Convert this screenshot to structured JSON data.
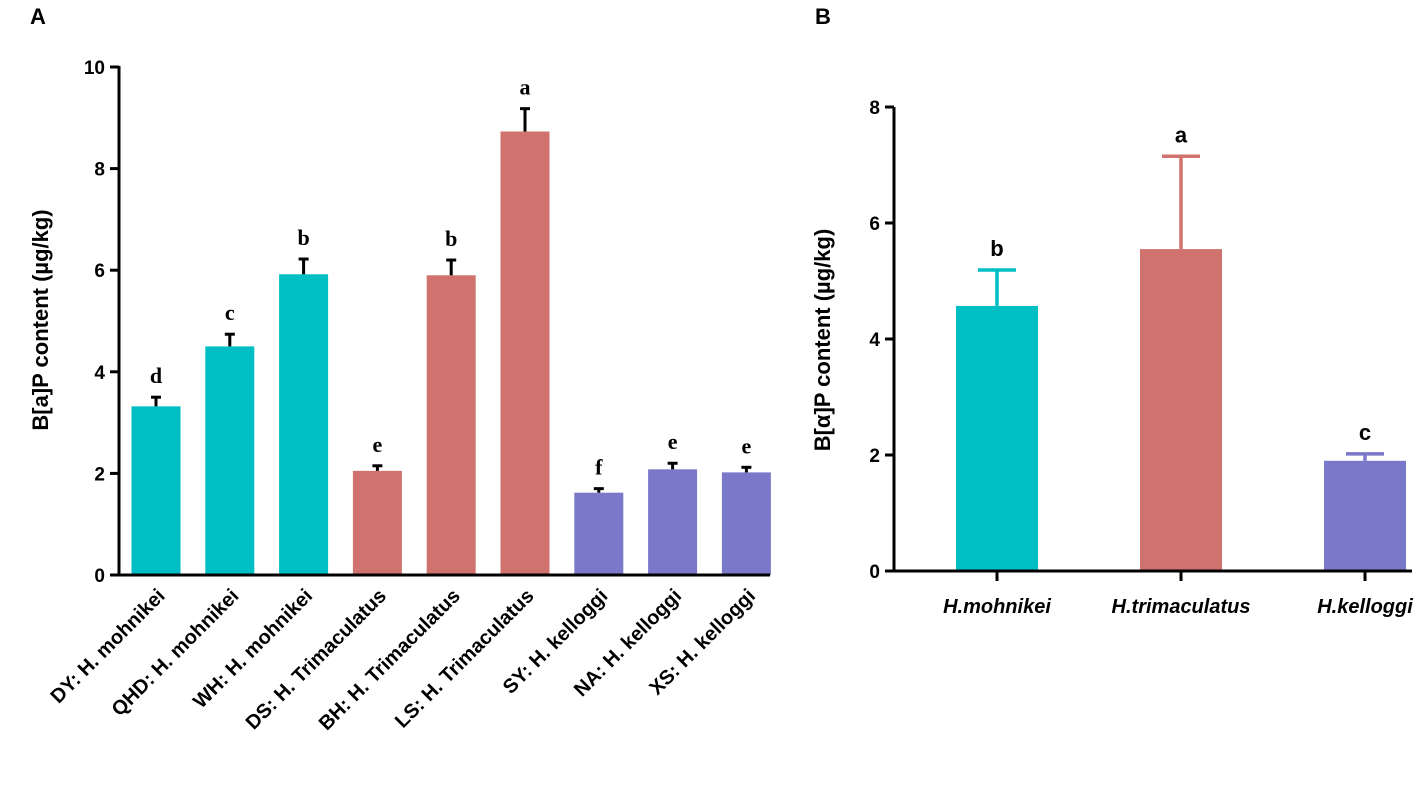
{
  "chart_data": [
    {
      "panel": "A",
      "type": "bar",
      "ylabel": "B[a]P content (µg/kg)",
      "xlabel": "",
      "ylim": [
        0,
        10
      ],
      "yticks": [
        0,
        2,
        4,
        6,
        8,
        10
      ],
      "categories": [
        "DY: H. mohnikei",
        "QHD: H. mohnikei",
        "WH: H. mohnikei",
        "DS: H. Trimaculatus",
        "BH: H. Trimaculatus",
        "LS: H. Trimaculatus",
        "SY: H. kelloggi",
        "NA: H. kelloggi",
        "XS: H. kelloggi"
      ],
      "values": [
        3.32,
        4.5,
        5.92,
        2.05,
        5.9,
        8.73,
        1.62,
        2.08,
        2.02
      ],
      "errors": [
        0.18,
        0.24,
        0.3,
        0.1,
        0.3,
        0.45,
        0.08,
        0.12,
        0.1
      ],
      "letters": [
        "d",
        "c",
        "b",
        "e",
        "b",
        "a",
        "f",
        "e",
        "e"
      ],
      "colors": [
        "#00BFC4",
        "#00BFC4",
        "#00BFC4",
        "#D0736E",
        "#D0736E",
        "#D0736E",
        "#7A78C8",
        "#7A78C8",
        "#7A78C8"
      ]
    },
    {
      "panel": "B",
      "type": "bar",
      "ylabel": "B[α]P content (µg/kg)",
      "xlabel": "",
      "ylim": [
        0,
        8
      ],
      "yticks": [
        0,
        2,
        4,
        6,
        8
      ],
      "categories": [
        "H.mohnikei",
        "H.trimaculatus",
        "H.kelloggi"
      ],
      "values": [
        4.57,
        5.55,
        1.9
      ],
      "errors": [
        0.62,
        1.6,
        0.12
      ],
      "letters": [
        "b",
        "a",
        "c"
      ],
      "colors": [
        "#00BFC4",
        "#D0736E",
        "#7A78C8"
      ]
    }
  ]
}
